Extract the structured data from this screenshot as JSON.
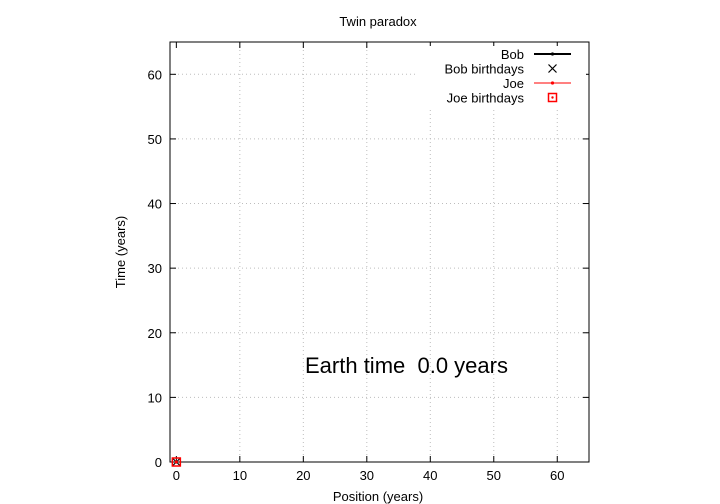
{
  "chart_data": {
    "type": "line",
    "title": "Twin paradox",
    "xlabel": "Position (years)",
    "ylabel": "Time (years)",
    "xlim": [
      -1,
      65
    ],
    "ylim": [
      0,
      65
    ],
    "xticks": [
      0,
      10,
      20,
      30,
      40,
      50,
      60
    ],
    "yticks": [
      0,
      10,
      20,
      30,
      40,
      50,
      60
    ],
    "grid": true,
    "legend_position": "top-right",
    "series": [
      {
        "name": "Bob",
        "kind": "line",
        "color": "#000000",
        "points": [
          [
            0,
            0
          ]
        ]
      },
      {
        "name": "Bob birthdays",
        "kind": "marker",
        "marker": "x",
        "color": "#000000",
        "points": [
          [
            0,
            0
          ]
        ]
      },
      {
        "name": "Joe",
        "kind": "line",
        "color": "#ff0000",
        "points": [
          [
            0,
            0
          ]
        ]
      },
      {
        "name": "Joe birthdays",
        "kind": "marker",
        "marker": "square-dot",
        "color": "#ff0000",
        "points": [
          [
            0,
            0
          ]
        ]
      }
    ],
    "annotation": "Earth time  0.0 years"
  }
}
